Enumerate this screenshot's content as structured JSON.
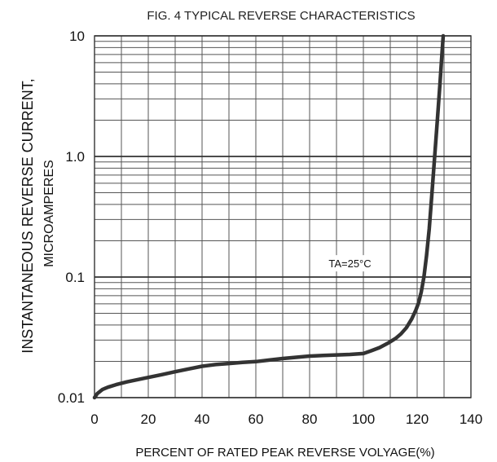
{
  "chart_data": {
    "type": "line",
    "title": "FIG. 4 TYPICAL REVERSE CHARACTERISTICS",
    "xlabel": "PERCENT OF RATED PEAK REVERSE VOLYAGE(%)",
    "ylabel_line1": "INSTANTANEOUS REVERSE CURRENT,",
    "ylabel_line2": "MICROAMPERES",
    "xlim": [
      0,
      140
    ],
    "ylim": [
      0.01,
      10
    ],
    "y_scale": "log",
    "grid": true,
    "x_ticks": [
      {
        "value": 0,
        "label": "0"
      },
      {
        "value": 20,
        "label": "20"
      },
      {
        "value": 40,
        "label": "40"
      },
      {
        "value": 60,
        "label": "60"
      },
      {
        "value": 80,
        "label": "80"
      },
      {
        "value": 100,
        "label": "100"
      },
      {
        "value": 120,
        "label": "120"
      },
      {
        "value": 140,
        "label": "140"
      }
    ],
    "y_ticks": [
      {
        "value": 0.01,
        "label": "0.01"
      },
      {
        "value": 0.1,
        "label": "0.1"
      },
      {
        "value": 1.0,
        "label": "1.0"
      },
      {
        "value": 10,
        "label": "10"
      }
    ],
    "annotation": {
      "text": "TA=25°C",
      "x": 95,
      "y": 0.13
    },
    "series": [
      {
        "x": [
          0,
          1,
          3,
          5,
          8,
          12,
          16,
          20,
          25,
          30,
          35,
          40,
          45,
          50,
          55,
          60,
          65,
          70,
          75,
          80,
          85,
          90,
          95,
          100,
          103,
          106,
          109,
          112,
          114,
          116,
          118,
          119.5,
          120.5,
          121.5,
          122.5,
          123.5,
          124.5,
          125.5,
          126.5,
          127.5,
          128.5,
          129.2,
          129.7
        ],
        "y": [
          0.01,
          0.0108,
          0.0117,
          0.0122,
          0.0128,
          0.0135,
          0.0141,
          0.0147,
          0.0155,
          0.0164,
          0.0173,
          0.0182,
          0.0188,
          0.0192,
          0.0196,
          0.0199,
          0.0205,
          0.0211,
          0.0216,
          0.0221,
          0.0224,
          0.0226,
          0.0228,
          0.0232,
          0.0245,
          0.026,
          0.0282,
          0.031,
          0.0338,
          0.038,
          0.045,
          0.053,
          0.061,
          0.075,
          0.1,
          0.15,
          0.25,
          0.5,
          1.0,
          2.0,
          4.0,
          7.0,
          10.0
        ],
        "color": "#333333"
      }
    ]
  }
}
